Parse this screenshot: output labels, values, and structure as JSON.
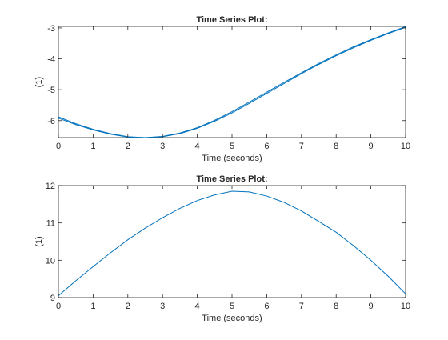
{
  "colors": {
    "line": "#0072BD",
    "axis": "#262626",
    "background": "#ffffff"
  },
  "chart_data": [
    {
      "type": "line",
      "title": "Time Series Plot:",
      "xlabel": "Time (seconds)",
      "ylabel": "(1)",
      "xlim": [
        0,
        10
      ],
      "ylim": [
        -6.55,
        -2.95
      ],
      "xticks": [
        0,
        1,
        2,
        3,
        4,
        5,
        6,
        7,
        8,
        9,
        10
      ],
      "yticks": [
        -6,
        -5,
        -4,
        -3
      ],
      "grid": false,
      "series": [
        {
          "color": "#0072BD",
          "x": [
            0,
            0.5,
            1,
            1.5,
            2,
            2.5,
            3,
            3.5,
            4,
            4.5,
            5,
            5.5,
            6,
            6.5,
            7,
            7.5,
            8,
            8.5,
            9,
            9.5,
            10
          ],
          "y": [
            -5.88,
            -6.1,
            -6.28,
            -6.42,
            -6.52,
            -6.55,
            -6.52,
            -6.42,
            -6.25,
            -6.02,
            -5.75,
            -5.44,
            -5.12,
            -4.8,
            -4.48,
            -4.18,
            -3.9,
            -3.64,
            -3.4,
            -3.18,
            -2.98
          ]
        },
        {
          "color": "#0072BD",
          "x": [
            0,
            0.5,
            1,
            1.5,
            2,
            2.5,
            3,
            3.5,
            4,
            4.5,
            5,
            5.5,
            6,
            6.5,
            7,
            7.5,
            8,
            8.5,
            9,
            9.5,
            10
          ],
          "y": [
            -5.92,
            -6.13,
            -6.3,
            -6.44,
            -6.53,
            -6.55,
            -6.51,
            -6.4,
            -6.23,
            -5.99,
            -5.71,
            -5.4,
            -5.08,
            -4.76,
            -4.45,
            -4.15,
            -3.87,
            -3.61,
            -3.38,
            -3.16,
            -2.96
          ]
        }
      ]
    },
    {
      "type": "line",
      "title": "Time Series Plot:",
      "xlabel": "Time (seconds)",
      "ylabel": "(1)",
      "xlim": [
        0,
        10
      ],
      "ylim": [
        9,
        12
      ],
      "xticks": [
        0,
        1,
        2,
        3,
        4,
        5,
        6,
        7,
        8,
        9,
        10
      ],
      "yticks": [
        9,
        10,
        11,
        12
      ],
      "grid": false,
      "series": [
        {
          "color": "#0072BD",
          "x": [
            0,
            0.5,
            1,
            1.5,
            2,
            2.5,
            3,
            3.5,
            4,
            4.5,
            5,
            5.5,
            6,
            6.5,
            7,
            7.5,
            8,
            8.5,
            9,
            9.5,
            10
          ],
          "y": [
            9.05,
            9.45,
            9.83,
            10.2,
            10.55,
            10.86,
            11.14,
            11.39,
            11.6,
            11.75,
            11.85,
            11.83,
            11.72,
            11.55,
            11.32,
            11.04,
            10.75,
            10.39,
            10.0,
            9.57,
            9.1
          ]
        }
      ]
    }
  ]
}
